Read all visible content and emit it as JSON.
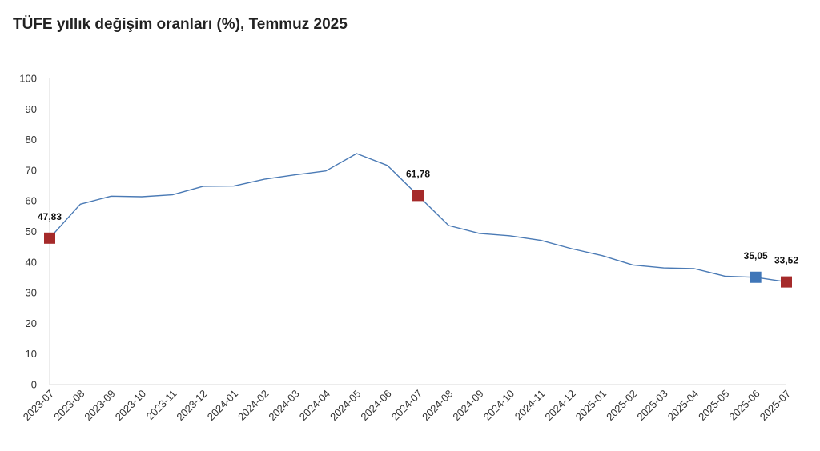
{
  "chart_data": {
    "type": "line",
    "title": "TÜFE yıllık değişim oranları (%), Temmuz 2025",
    "xlabel": "",
    "ylabel": "",
    "ylim": [
      0,
      100
    ],
    "yticks": [
      0,
      10,
      20,
      30,
      40,
      50,
      60,
      70,
      80,
      90,
      100
    ],
    "grid": false,
    "legend": "none",
    "categories": [
      "2023-07",
      "2023-08",
      "2023-09",
      "2023-10",
      "2023-11",
      "2023-12",
      "2024-01",
      "2024-02",
      "2024-03",
      "2024-04",
      "2024-05",
      "2024-06",
      "2024-07",
      "2024-08",
      "2024-09",
      "2024-10",
      "2024-11",
      "2024-12",
      "2025-01",
      "2025-02",
      "2025-03",
      "2025-04",
      "2025-05",
      "2025-06",
      "2025-07"
    ],
    "series": [
      {
        "values": [
          47.83,
          58.94,
          61.53,
          61.36,
          61.98,
          64.77,
          64.86,
          67.07,
          68.5,
          69.8,
          75.45,
          71.6,
          61.78,
          51.97,
          49.38,
          48.58,
          47.09,
          44.38,
          42.12,
          39.05,
          38.1,
          37.86,
          35.41,
          35.05,
          33.52
        ],
        "color": "#4a7ab5"
      }
    ],
    "highlights": [
      {
        "index": 0,
        "label": "47,83",
        "color": "#a52a2a"
      },
      {
        "index": 12,
        "label": "61,78",
        "color": "#a52a2a"
      },
      {
        "index": 23,
        "label": "35,05",
        "color": "#3f76b8"
      },
      {
        "index": 24,
        "label": "33,52",
        "color": "#a52a2a"
      }
    ]
  }
}
